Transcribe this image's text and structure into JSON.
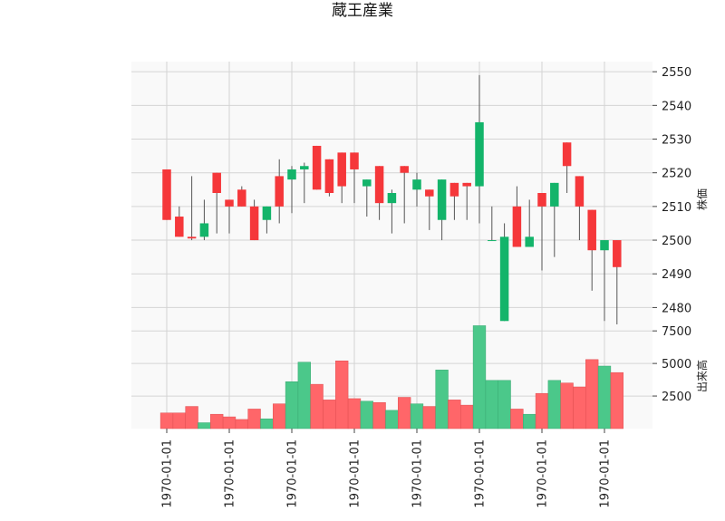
{
  "chart_data": {
    "type": "candlestick",
    "title": "蔵王産業",
    "price_ylabel": "株価",
    "volume_ylabel": "出来高",
    "x_tick_labels": [
      "1970-01-01",
      "1970-01-01",
      "1970-01-01",
      "1970-01-01",
      "1970-01-01",
      "1970-01-01",
      "1970-01-01",
      "1970-01-01"
    ],
    "x_tick_indices": [
      0,
      5,
      10,
      15,
      20,
      25,
      30,
      35
    ],
    "price_ticks": [
      2480,
      2490,
      2500,
      2510,
      2520,
      2530,
      2540,
      2550
    ],
    "price_ylim": [
      2475,
      2553
    ],
    "volume_ticks": [
      2500,
      5000,
      7500
    ],
    "volume_ylim": [
      0,
      8000
    ],
    "grid": true,
    "colors": {
      "up": "#13b46a",
      "down": "#f5373a",
      "up_volume": "#4bc88a",
      "down_volume": "#ff6669",
      "wick": "#555555",
      "panel_bg": "#f9f9f9"
    },
    "candles": [
      {
        "open": 2521,
        "high": 2521,
        "low": 2506,
        "close": 2506,
        "volume": 1200
      },
      {
        "open": 2507,
        "high": 2510,
        "low": 2501,
        "close": 2501,
        "volume": 1200
      },
      {
        "open": 2501,
        "high": 2519,
        "low": 2500,
        "close": 2500.5,
        "volume": 1700
      },
      {
        "open": 2501,
        "high": 2512,
        "low": 2500,
        "close": 2505,
        "volume": 450
      },
      {
        "open": 2520,
        "high": 2520,
        "low": 2502,
        "close": 2514,
        "volume": 1100
      },
      {
        "open": 2512,
        "high": 2512,
        "low": 2502,
        "close": 2510,
        "volume": 900
      },
      {
        "open": 2515,
        "high": 2516,
        "low": 2510,
        "close": 2510,
        "volume": 700
      },
      {
        "open": 2510,
        "high": 2512,
        "low": 2500,
        "close": 2500,
        "volume": 1500
      },
      {
        "open": 2506,
        "high": 2510,
        "low": 2502,
        "close": 2510,
        "volume": 750
      },
      {
        "open": 2519,
        "high": 2524,
        "low": 2505,
        "close": 2510,
        "volume": 1900
      },
      {
        "open": 2518,
        "high": 2522,
        "low": 2508,
        "close": 2521,
        "volume": 3600
      },
      {
        "open": 2521,
        "high": 2523,
        "low": 2511,
        "close": 2522,
        "volume": 5100
      },
      {
        "open": 2528,
        "high": 2528,
        "low": 2515,
        "close": 2515,
        "volume": 3400
      },
      {
        "open": 2524,
        "high": 2524,
        "low": 2513,
        "close": 2514,
        "volume": 2200
      },
      {
        "open": 2526,
        "high": 2526,
        "low": 2511,
        "close": 2516,
        "volume": 5200
      },
      {
        "open": 2526,
        "high": 2526,
        "low": 2511,
        "close": 2521,
        "volume": 2300
      },
      {
        "open": 2516,
        "high": 2518,
        "low": 2507,
        "close": 2518,
        "volume": 2100
      },
      {
        "open": 2522,
        "high": 2522,
        "low": 2506,
        "close": 2511,
        "volume": 2000
      },
      {
        "open": 2511,
        "high": 2515,
        "low": 2502,
        "close": 2514,
        "volume": 1400
      },
      {
        "open": 2522,
        "high": 2522,
        "low": 2505,
        "close": 2520,
        "volume": 2400
      },
      {
        "open": 2515,
        "high": 2520,
        "low": 2510,
        "close": 2518,
        "volume": 1900
      },
      {
        "open": 2515,
        "high": 2515,
        "low": 2503,
        "close": 2513,
        "volume": 1700
      },
      {
        "open": 2506,
        "high": 2518,
        "low": 2500,
        "close": 2518,
        "volume": 4500
      },
      {
        "open": 2517,
        "high": 2517,
        "low": 2506,
        "close": 2513,
        "volume": 2200
      },
      {
        "open": 2517,
        "high": 2517,
        "low": 2506,
        "close": 2516,
        "volume": 1800
      },
      {
        "open": 2516,
        "high": 2549,
        "low": 2505,
        "close": 2535,
        "volume": 7900
      },
      {
        "open": 2500,
        "high": 2510,
        "low": 2500,
        "close": 2500,
        "volume": 3700
      },
      {
        "open": 2476,
        "high": 2505,
        "low": 2476,
        "close": 2501,
        "volume": 3700
      },
      {
        "open": 2510,
        "high": 2516,
        "low": 2498,
        "close": 2498,
        "volume": 1500
      },
      {
        "open": 2498,
        "high": 2512,
        "low": 2498,
        "close": 2501,
        "volume": 1100
      },
      {
        "open": 2514,
        "high": 2514,
        "low": 2491,
        "close": 2510,
        "volume": 2700
      },
      {
        "open": 2510,
        "high": 2517,
        "low": 2495,
        "close": 2517,
        "volume": 3700
      },
      {
        "open": 2529,
        "high": 2529,
        "low": 2514,
        "close": 2522,
        "volume": 3500
      },
      {
        "open": 2519,
        "high": 2519,
        "low": 2500,
        "close": 2510,
        "volume": 3200
      },
      {
        "open": 2509,
        "high": 2509,
        "low": 2485,
        "close": 2497,
        "volume": 5300
      },
      {
        "open": 2497,
        "high": 2500,
        "low": 2476,
        "close": 2500,
        "volume": 4800
      },
      {
        "open": 2500,
        "high": 2500,
        "low": 2475,
        "close": 2492,
        "volume": 4300
      }
    ]
  }
}
